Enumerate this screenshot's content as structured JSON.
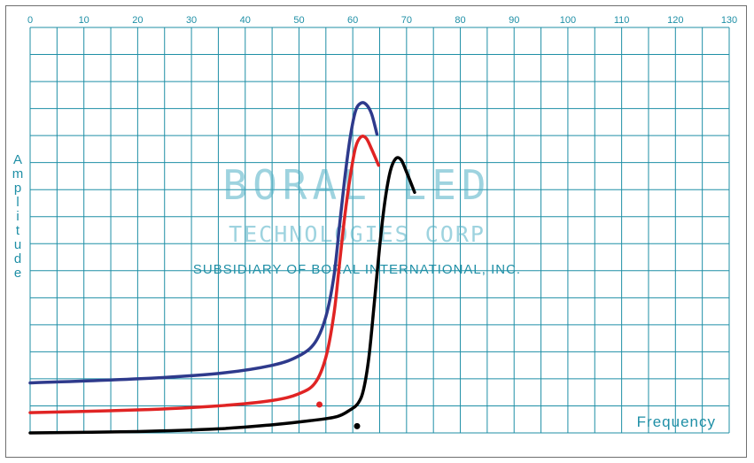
{
  "chart_data": {
    "type": "line",
    "title": "",
    "xlabel": "Frequency",
    "ylabel": "Amplitude",
    "xlim": [
      0,
      130
    ],
    "ylim": [
      0,
      15
    ],
    "x_ticks": [
      "0",
      "10",
      "20",
      "30",
      "40",
      "50",
      "60",
      "70",
      "80",
      "90",
      "100",
      "110",
      "120",
      "130"
    ],
    "grid": true,
    "legend": "none",
    "series": [
      {
        "color": "#2e3a8c",
        "points": [
          [
            0,
            1.85
          ],
          [
            20,
            2.0
          ],
          [
            35,
            2.2
          ],
          [
            45,
            2.5
          ],
          [
            50,
            2.85
          ],
          [
            53,
            3.35
          ],
          [
            55,
            4.3
          ],
          [
            56.5,
            5.8
          ],
          [
            57.5,
            7.6
          ],
          [
            58.5,
            9.4
          ],
          [
            59.5,
            10.9
          ],
          [
            60.5,
            11.9
          ],
          [
            61.5,
            12.2
          ],
          [
            62.5,
            12.15
          ],
          [
            63.5,
            11.8
          ],
          [
            64.5,
            11.05
          ]
        ],
        "endpoint_marker": null
      },
      {
        "color": "#e02424",
        "points": [
          [
            0,
            0.75
          ],
          [
            20,
            0.85
          ],
          [
            35,
            1.0
          ],
          [
            45,
            1.2
          ],
          [
            50,
            1.45
          ],
          [
            53,
            1.85
          ],
          [
            55,
            2.8
          ],
          [
            56.5,
            4.4
          ],
          [
            57.5,
            6.2
          ],
          [
            58.5,
            8.0
          ],
          [
            59.5,
            9.45
          ],
          [
            60.5,
            10.55
          ],
          [
            61.5,
            10.95
          ],
          [
            62.5,
            10.9
          ],
          [
            63.5,
            10.5
          ],
          [
            64.8,
            9.9
          ]
        ],
        "endpoint_marker": [
          53.8,
          1.05
        ]
      },
      {
        "color": "#000000",
        "points": [
          [
            0,
            0.0
          ],
          [
            20,
            0.05
          ],
          [
            35,
            0.15
          ],
          [
            45,
            0.3
          ],
          [
            52,
            0.45
          ],
          [
            57,
            0.6
          ],
          [
            59.5,
            0.85
          ],
          [
            61,
            1.1
          ],
          [
            62,
            1.6
          ],
          [
            63,
            2.8
          ],
          [
            64,
            4.8
          ],
          [
            65,
            6.9
          ],
          [
            66,
            8.6
          ],
          [
            67,
            9.7
          ],
          [
            68,
            10.15
          ],
          [
            69,
            10.1
          ],
          [
            70,
            9.65
          ],
          [
            71.5,
            8.9
          ]
        ],
        "endpoint_marker": [
          60.8,
          0.25
        ]
      }
    ],
    "watermark": {
      "line1": "BORAL LED",
      "line2": "TECHNOLOGIES CORP",
      "line3": "SUBSIDIARY OF BORAL INTERNATIONAL, INC."
    }
  },
  "colors": {
    "grid": "#1f8fa6",
    "background": "#ffffff",
    "frame": "#6f6f6f"
  }
}
